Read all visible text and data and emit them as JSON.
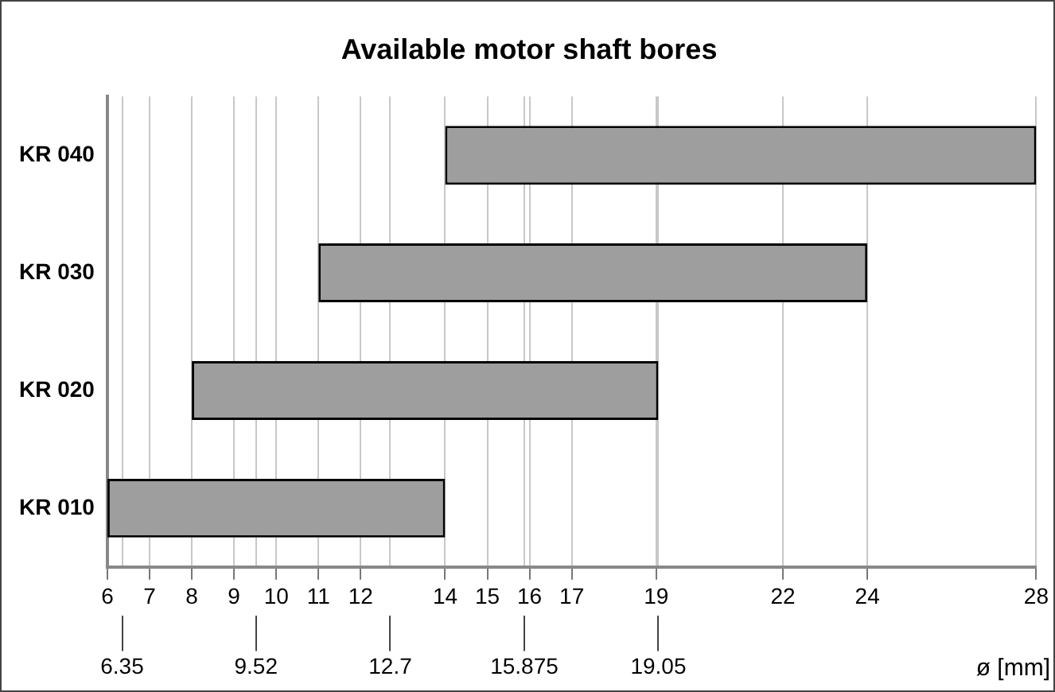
{
  "chart_data": {
    "type": "bar",
    "title": "Available motor shaft bores",
    "xlabel": "ø [mm]",
    "orientation": "horizontal",
    "categories": [
      "KR 040",
      "KR 030",
      "KR 020",
      "KR 010"
    ],
    "base": [
      14,
      11,
      8,
      6
    ],
    "values": [
      14,
      13,
      11.05,
      8
    ],
    "color": "#9e9e9e",
    "xlim": [
      6,
      28
    ],
    "xticks": [
      6,
      7,
      8,
      9,
      10,
      11,
      12,
      14,
      15,
      16,
      17,
      19,
      22,
      24,
      28
    ],
    "x2lim": [
      6,
      28
    ],
    "x2ticks": [
      6.35,
      9.52,
      12.7,
      15.875,
      19.05
    ],
    "grid": "x",
    "legend": false
  }
}
